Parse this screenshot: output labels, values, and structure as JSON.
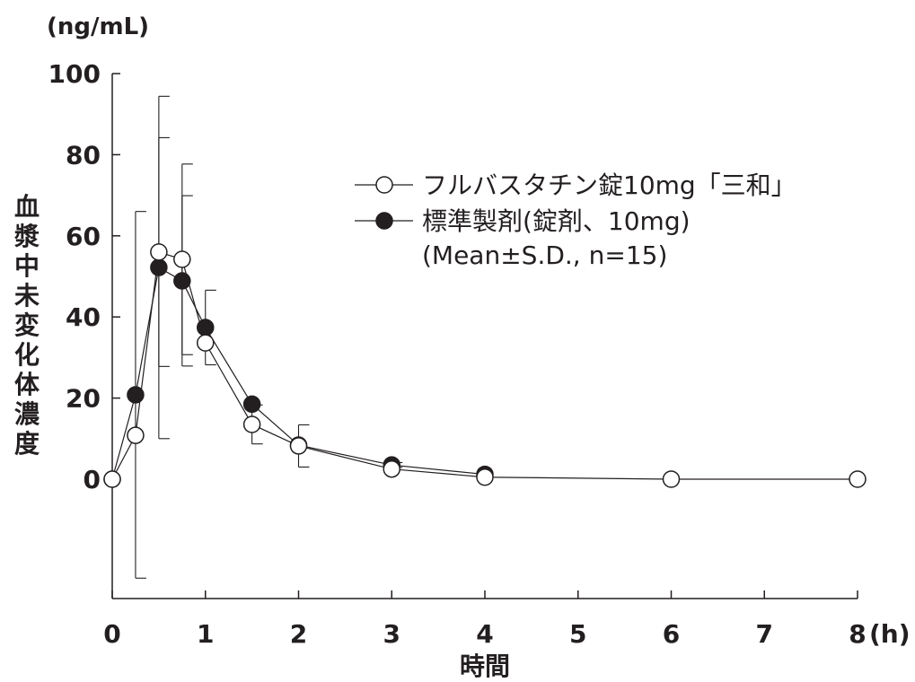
{
  "chart_data": {
    "type": "line",
    "unit_label": "(ng/mL)",
    "ylabel": "血漿中未変化体濃度",
    "xlabel": "時間",
    "x_unit": "(h)",
    "xlim": [
      0,
      8
    ],
    "ylim": [
      -25,
      100
    ],
    "x_ticks": [
      0,
      1,
      2,
      3,
      4,
      5,
      6,
      7,
      8
    ],
    "x_tick_labels": [
      "0",
      "1",
      "2",
      "3",
      "4",
      "5",
      "6",
      "7",
      "8"
    ],
    "y_ticks": [
      0,
      20,
      40,
      60,
      80,
      100
    ],
    "y_tick_labels": [
      "0",
      "20",
      "40",
      "60",
      "80",
      "100"
    ],
    "grid": false,
    "legend_position": "top-right",
    "legend_note": "(Mean±S.D., n=15)",
    "series": [
      {
        "name": "フルバスタチン錠10mg「三和」",
        "marker": "open-circle",
        "x": [
          0,
          0.25,
          0.5,
          0.75,
          1,
          1.5,
          2,
          3,
          4,
          6,
          8
        ],
        "y": [
          0,
          10.8,
          56,
          54.2,
          33.6,
          13.5,
          8.2,
          2.5,
          0.5,
          0,
          0
        ],
        "err": [
          0,
          0,
          28.2,
          23.5,
          0,
          4.8,
          5.2,
          0,
          0,
          0,
          0
        ]
      },
      {
        "name": "標準製剤(錠剤、10mg)",
        "marker": "filled-circle",
        "x": [
          0,
          0.25,
          0.5,
          0.75,
          1,
          1.5,
          2,
          3,
          4
        ],
        "y": [
          0,
          20.8,
          52.2,
          48.9,
          37.4,
          18.5,
          8.4,
          3.5,
          1.2
        ],
        "err": [
          0,
          45.2,
          42.2,
          21,
          9.2,
          0,
          0,
          0.6,
          0
        ]
      }
    ],
    "colors": {
      "axis": "#231f20",
      "line": "#231f20",
      "open_fill": "#ffffff",
      "filled": "#231f20"
    }
  }
}
